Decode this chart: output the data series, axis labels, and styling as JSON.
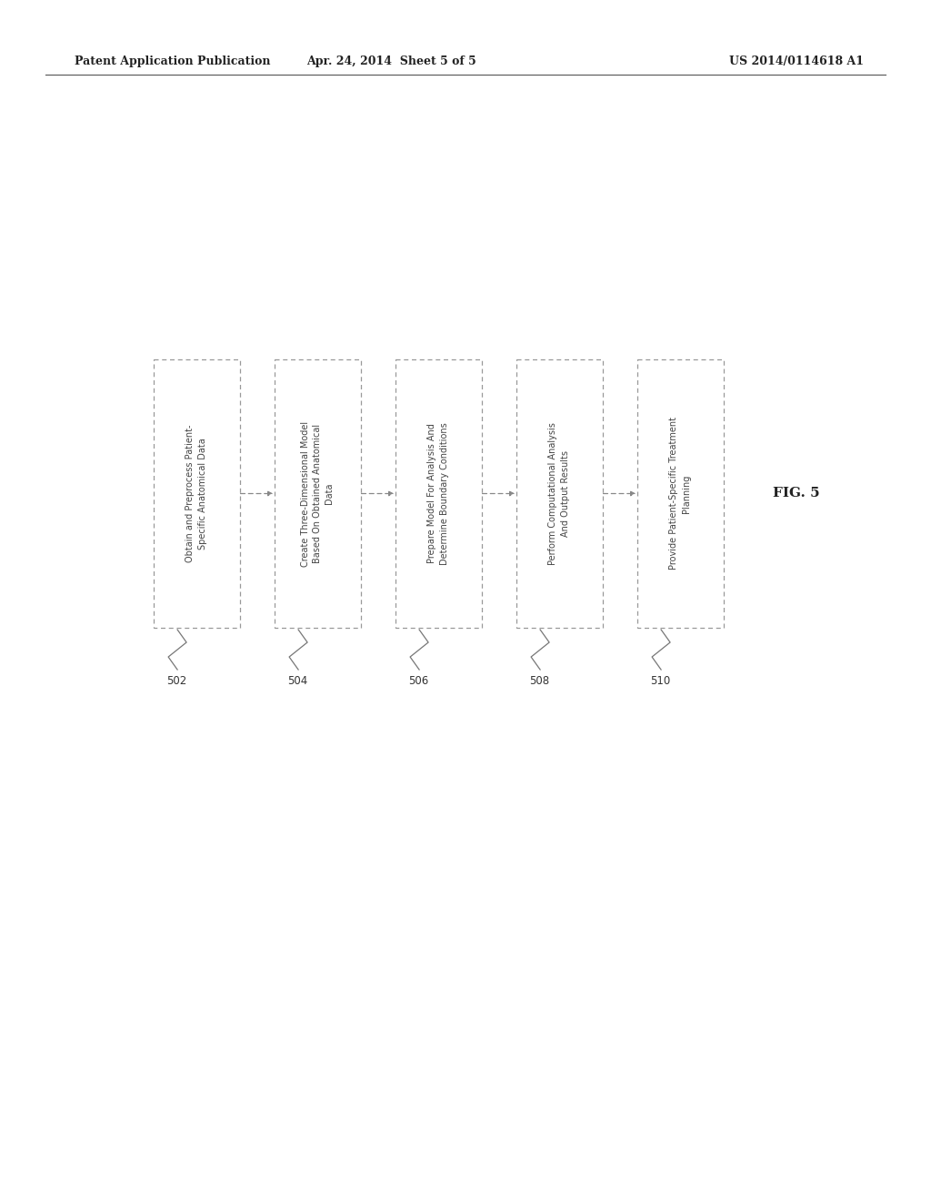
{
  "header_left": "Patent Application Publication",
  "header_center": "Apr. 24, 2014  Sheet 5 of 5",
  "header_right": "US 2014/0114618 A1",
  "figure_label": "FIG. 5",
  "background_color": "#ffffff",
  "labels": [
    "Obtain and Preprocess Patient-\nSpecific Anatomical Data",
    "Create Three-Dimensional Model\nBased On Obtained Anatomical\nData",
    "Prepare Model For Analysis And\nDetermine Boundary Conditions",
    "Perform Computational Analysis\nAnd Output Results",
    "Provide Patient-Specific Treatment\nPlanning"
  ],
  "ids": [
    "502",
    "504",
    "506",
    "508",
    "510"
  ],
  "box_color": "#ffffff",
  "box_edge_color": "#999999",
  "text_color": "#444444",
  "arrow_color": "#888888",
  "header_fontsize": 9,
  "label_fontsize": 7.0,
  "id_fontsize": 8.5
}
